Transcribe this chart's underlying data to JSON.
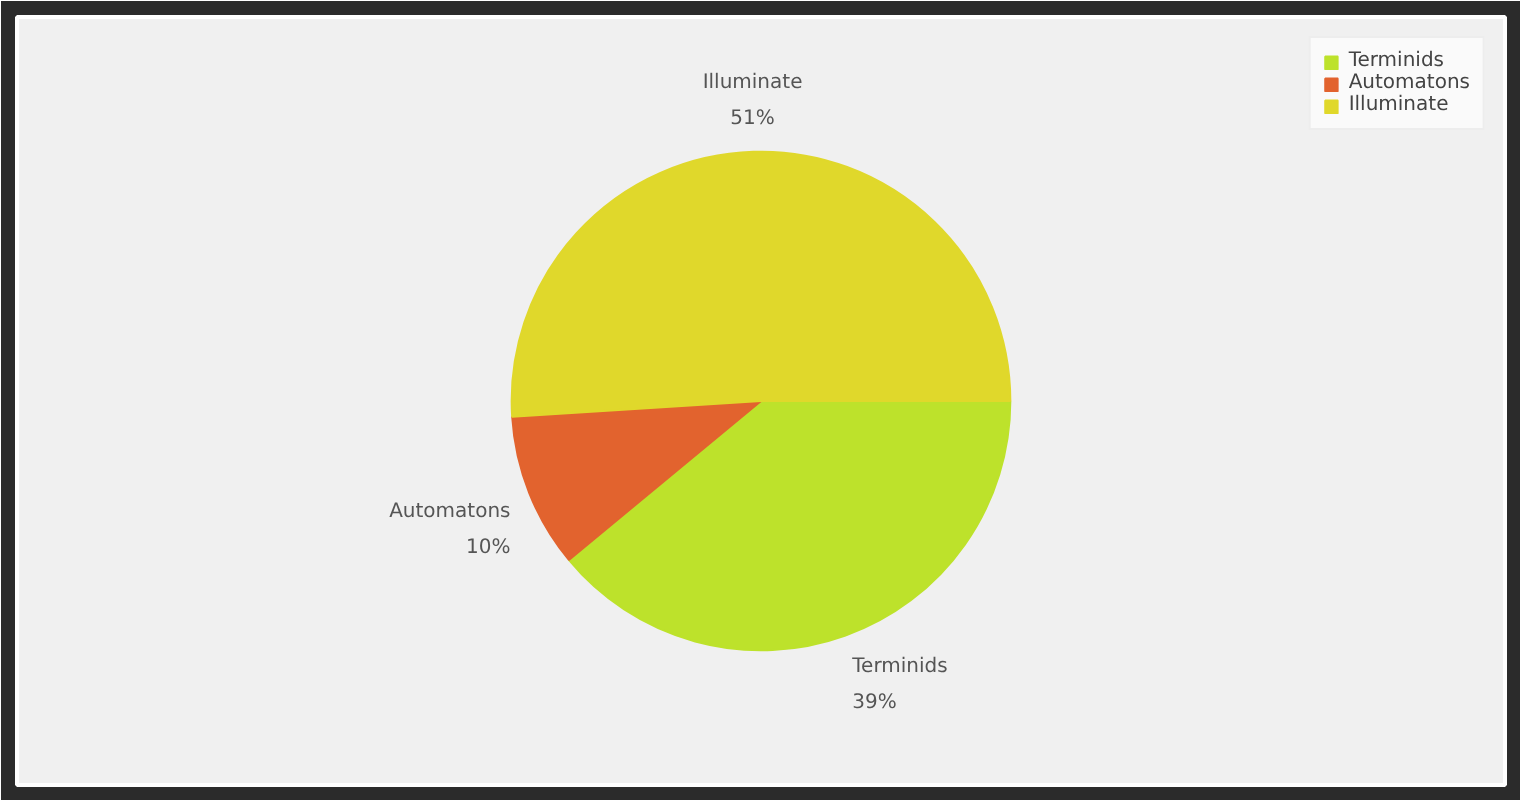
{
  "chart_data": {
    "type": "pie",
    "categories": [
      "Terminids",
      "Automatons",
      "Illuminate"
    ],
    "values": [
      39,
      10,
      51
    ],
    "colors": [
      "#bde22b",
      "#e2632e",
      "#e0d82b"
    ],
    "value_labels": [
      "39%",
      "10%",
      "51%"
    ],
    "legend": "top right"
  }
}
